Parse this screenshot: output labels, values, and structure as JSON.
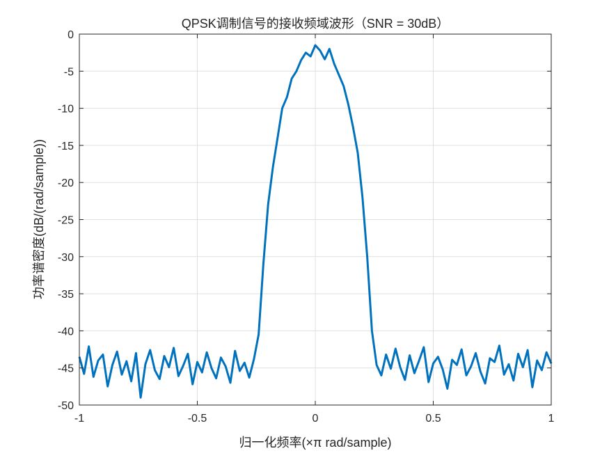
{
  "chart_data": {
    "type": "line",
    "title": "QPSK调制信号的接收频域波形（SNR = 30dB）",
    "xlabel": "归一化频率(×π rad/sample)",
    "ylabel": "功率谱密度(dB/(rad/sample))",
    "xlim": [
      -1,
      1
    ],
    "ylim": [
      -50,
      0
    ],
    "xticks": [
      -1,
      -0.5,
      0,
      0.5,
      1
    ],
    "xtick_labels": [
      "-1",
      "-0.5",
      "0",
      "0.5",
      "1"
    ],
    "yticks": [
      0,
      -5,
      -10,
      -15,
      -20,
      -25,
      -30,
      -35,
      -40,
      -45,
      -50
    ],
    "ytick_labels": [
      "0",
      "-5",
      "-10",
      "-15",
      "-20",
      "-25",
      "-30",
      "-35",
      "-40",
      "-45",
      "-50"
    ],
    "grid": true,
    "line_color": "#0072BD",
    "series": [
      {
        "x_start": -1,
        "x_step": 0.02,
        "values": [
          -43.5,
          -45.8,
          -42.1,
          -46.2,
          -44.0,
          -43.2,
          -47.5,
          -44.6,
          -42.8,
          -45.9,
          -44.1,
          -46.8,
          -43.0,
          -49.0,
          -44.5,
          -42.6,
          -45.3,
          -46.5,
          -43.4,
          -44.9,
          -42.3,
          -46.1,
          -44.7,
          -43.1,
          -47.2,
          -44.2,
          -45.6,
          -42.9,
          -45.0,
          -46.4,
          -43.6,
          -44.8,
          -47.0,
          -42.7,
          -45.4,
          -44.3,
          -46.3,
          -43.8,
          -40.5,
          -31.0,
          -23.0,
          -18.0,
          -14.0,
          -10.0,
          -8.5,
          -6.0,
          -5.0,
          -3.5,
          -2.5,
          -3.0,
          -1.5,
          -2.2,
          -3.4,
          -2.0,
          -4.0,
          -5.5,
          -7.0,
          -9.5,
          -12.5,
          -16.0,
          -22.0,
          -30.0,
          -40.0,
          -44.6,
          -46.0,
          -43.2,
          -45.1,
          -42.4,
          -44.9,
          -46.6,
          -43.3,
          -45.7,
          -44.0,
          -42.2,
          -46.9,
          -44.4,
          -43.5,
          -45.2,
          -47.8,
          -43.9,
          -44.6,
          -42.5,
          -46.0,
          -44.8,
          -43.0,
          -45.5,
          -47.1,
          -43.7,
          -44.2,
          -42.0,
          -45.9,
          -44.5,
          -46.7,
          -43.1,
          -44.9,
          -42.6,
          -47.6,
          -44.0,
          -45.3,
          -42.9,
          -44.4
        ]
      }
    ]
  }
}
